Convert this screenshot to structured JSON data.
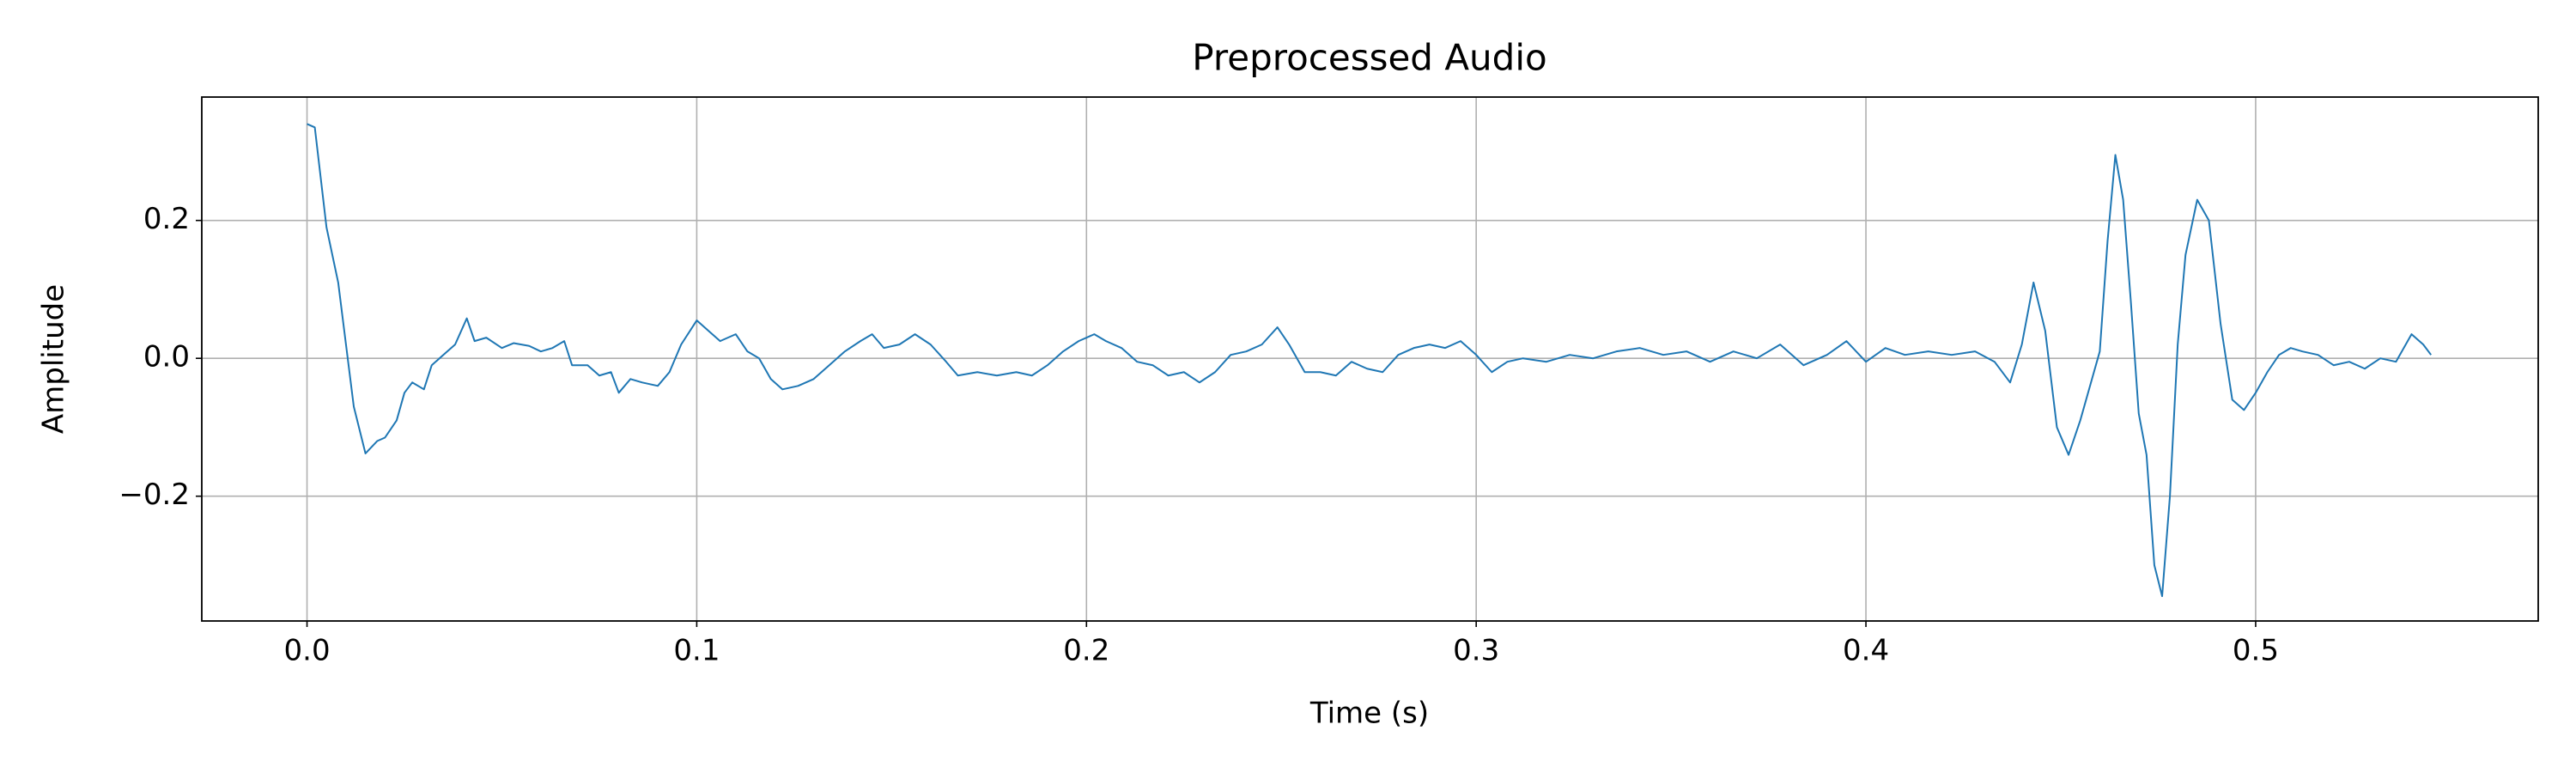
{
  "chart_data": {
    "type": "line",
    "title": "Preprocessed Audio",
    "x_label": "Time (s)",
    "y_label": "Amplitude",
    "x": [
      0,
      0.002,
      0.005,
      0.008,
      0.01,
      0.012,
      0.015,
      0.018,
      0.02,
      0.023,
      0.025,
      0.027,
      0.03,
      0.032,
      0.035,
      0.038,
      0.041,
      0.043,
      0.046,
      0.05,
      0.053,
      0.057,
      0.06,
      0.063,
      0.066,
      0.068,
      0.072,
      0.075,
      0.078,
      0.08,
      0.083,
      0.086,
      0.09,
      0.093,
      0.096,
      0.1,
      0.103,
      0.106,
      0.11,
      0.113,
      0.116,
      0.119,
      0.122,
      0.126,
      0.13,
      0.134,
      0.138,
      0.142,
      0.145,
      0.148,
      0.152,
      0.156,
      0.16,
      0.164,
      0.167,
      0.172,
      0.177,
      0.182,
      0.186,
      0.19,
      0.194,
      0.198,
      0.202,
      0.205,
      0.209,
      0.213,
      0.217,
      0.221,
      0.225,
      0.229,
      0.233,
      0.237,
      0.241,
      0.245,
      0.249,
      0.252,
      0.256,
      0.26,
      0.264,
      0.268,
      0.272,
      0.276,
      0.28,
      0.284,
      0.288,
      0.292,
      0.296,
      0.3,
      0.304,
      0.308,
      0.312,
      0.318,
      0.324,
      0.33,
      0.336,
      0.342,
      0.348,
      0.354,
      0.36,
      0.366,
      0.372,
      0.378,
      0.384,
      0.39,
      0.395,
      0.4,
      0.405,
      0.41,
      0.416,
      0.422,
      0.428,
      0.433,
      0.437,
      0.44,
      0.443,
      0.446,
      0.449,
      0.452,
      0.455,
      0.458,
      0.46,
      0.462,
      0.464,
      0.466,
      0.468,
      0.47,
      0.472,
      0.474,
      0.476,
      0.478,
      0.48,
      0.482,
      0.485,
      0.488,
      0.491,
      0.494,
      0.497,
      0.5,
      0.503,
      0.506,
      0.509,
      0.512,
      0.516,
      0.52,
      0.524,
      0.528,
      0.532,
      0.536,
      0.54,
      0.543,
      0.545
    ],
    "series": [
      {
        "color": "#1f77b4",
        "values": [
          0.34,
          0.335,
          0.19,
          0.11,
          0.02,
          -0.07,
          -0.138,
          -0.12,
          -0.115,
          -0.09,
          -0.05,
          -0.035,
          -0.045,
          -0.01,
          0.005,
          0.02,
          0.058,
          0.025,
          0.03,
          0.015,
          0.022,
          0.018,
          0.01,
          0.015,
          0.025,
          -0.01,
          -0.01,
          -0.025,
          -0.02,
          -0.05,
          -0.03,
          -0.035,
          -0.04,
          -0.02,
          0.02,
          0.055,
          0.04,
          0.025,
          0.035,
          0.01,
          0.0,
          -0.03,
          -0.045,
          -0.04,
          -0.03,
          -0.01,
          0.01,
          0.025,
          0.035,
          0.015,
          0.02,
          0.035,
          0.02,
          -0.005,
          -0.025,
          -0.02,
          -0.025,
          -0.02,
          -0.025,
          -0.01,
          0.01,
          0.025,
          0.035,
          0.025,
          0.015,
          -0.005,
          -0.01,
          -0.025,
          -0.02,
          -0.035,
          -0.02,
          0.005,
          0.01,
          0.02,
          0.045,
          0.02,
          -0.02,
          -0.02,
          -0.025,
          -0.005,
          -0.015,
          -0.02,
          0.005,
          0.015,
          0.02,
          0.015,
          0.025,
          0.005,
          -0.02,
          -0.005,
          0.0,
          -0.005,
          0.005,
          0.0,
          0.01,
          0.015,
          0.005,
          0.01,
          -0.005,
          0.01,
          0.0,
          0.02,
          -0.01,
          0.005,
          0.025,
          -0.005,
          0.015,
          0.005,
          0.01,
          0.005,
          0.01,
          -0.005,
          -0.035,
          0.02,
          0.11,
          0.04,
          -0.1,
          -0.14,
          -0.09,
          -0.03,
          0.01,
          0.17,
          0.295,
          0.23,
          0.08,
          -0.08,
          -0.14,
          -0.3,
          -0.345,
          -0.2,
          0.02,
          0.15,
          0.23,
          0.2,
          0.05,
          -0.06,
          -0.075,
          -0.05,
          -0.02,
          0.005,
          0.015,
          0.01,
          0.005,
          -0.01,
          -0.005,
          -0.015,
          0.0,
          -0.005,
          0.035,
          0.02,
          0.005
        ]
      }
    ],
    "xlim": [
      -0.027,
      0.5725
    ],
    "ylim": [
      -0.381,
      0.379
    ],
    "xticks": [
      {
        "value": 0,
        "label": "0.0"
      },
      0.1,
      0.2,
      0.3,
      0.4,
      0.5
    ],
    "yticks": [
      {
        "value": -0.2,
        "label": "−0.2"
      },
      {
        "value": 0,
        "label": "0.0"
      },
      0.2
    ],
    "grid": true
  }
}
